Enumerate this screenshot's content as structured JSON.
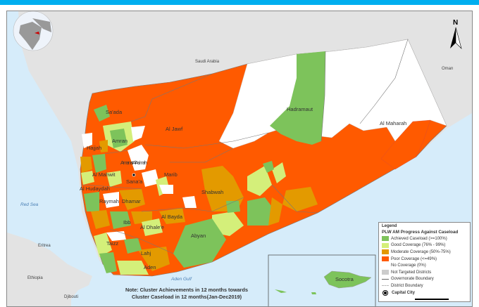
{
  "map": {
    "countries": [
      "Saudi Arabia",
      "Oman",
      "Eritrea",
      "Ethiopia",
      "Djibouti"
    ],
    "water_bodies": [
      "Red Sea",
      "Aden Gulf"
    ],
    "governorates": [
      "Sa'ada",
      "Al Jawf",
      "Hajjah",
      "Amran",
      "Amanat Al Asimah",
      "Sana'a",
      "Al Mahwit",
      "Al Hudaydah",
      "Raymah",
      "Dhamar",
      "Marib",
      "Shabwah",
      "Al Bayda",
      "Ibb",
      "Al Dhale'e",
      "Abyan",
      "Taizz",
      "Lahj",
      "Aden",
      "Hadramaut",
      "Al Maharah",
      "Socotra"
    ],
    "capital_city": "Sana'a",
    "north_arrow": "N",
    "colors": {
      "achieved": "#7dc35b",
      "good": "#d4ef7a",
      "moderate": "#e39a00",
      "poor": "#ff5a00",
      "none": "#ffffff",
      "not_targeted": "#cccccc",
      "sea": "#d6ecfa",
      "land": "#e3e3e3"
    }
  },
  "legend": {
    "title": "Legend",
    "subtitle": "PLW AM Progress Against Caseload",
    "items": [
      {
        "label": "Achieved Caseload (>=100%)",
        "color": "#7dc35b"
      },
      {
        "label": "Good Coverage (76% - 99%)",
        "color": "#d4ef7a"
      },
      {
        "label": "Moderate Coverage (50%-75%)",
        "color": "#e39a00"
      },
      {
        "label": "Poor Coverage (<=49%)",
        "color": "#ff5a00"
      },
      {
        "label": "No Coverage (0%)",
        "color": "#ffffff"
      },
      {
        "label": "Not Targeted Districts",
        "color": "#cccccc"
      }
    ],
    "lines": [
      "Governorate Boundary",
      "District Boundary"
    ],
    "capital": "Capital City"
  },
  "note": {
    "line1": "Note: Cluster Achievements in 12  months towards",
    "line2": "Cluster Caseload in 12 months(Jan-Dec2019)"
  }
}
